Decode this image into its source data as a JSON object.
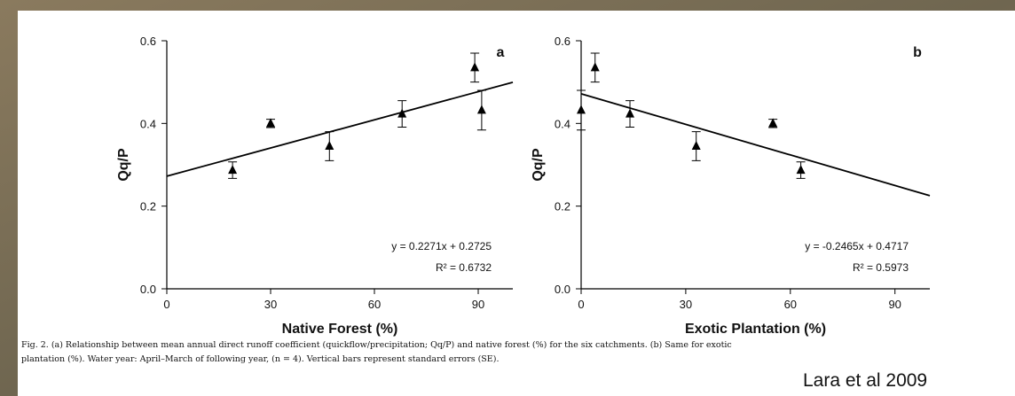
{
  "chart_data": [
    {
      "type": "scatter",
      "panel_label": "a",
      "x_label": "Native Forest (%)",
      "y_label": "Qq/P",
      "x": [
        19,
        30,
        47,
        68,
        89,
        91
      ],
      "values": [
        0.287,
        0.4,
        0.345,
        0.423,
        0.535,
        0.432
      ],
      "errors": [
        0.02,
        0.01,
        0.035,
        0.032,
        0.035,
        0.048
      ],
      "trend": {
        "slope": 0.002271,
        "intercept": 0.2725
      },
      "equation": "y = 0.2271x + 0.2725",
      "r_squared": "R² = 0.6732",
      "xlim": [
        0,
        100
      ],
      "ylim": [
        0,
        0.6
      ],
      "xticks": [
        0,
        30,
        60,
        90
      ],
      "yticks": [
        {
          "value": 0,
          "label": "0.0"
        },
        {
          "value": 0.2,
          "label": "0.2"
        },
        {
          "value": 0.4,
          "label": "0.4"
        },
        {
          "value": 0.6,
          "label": "0.6"
        }
      ],
      "color": "#000000"
    },
    {
      "type": "scatter",
      "panel_label": "b",
      "x_label": "Exotic Plantation (%)",
      "y_label": "Qq/P",
      "x": [
        0,
        4,
        14,
        33,
        55,
        63
      ],
      "values": [
        0.432,
        0.535,
        0.423,
        0.345,
        0.4,
        0.287
      ],
      "errors": [
        0.048,
        0.035,
        0.032,
        0.035,
        0.01,
        0.02
      ],
      "trend": {
        "slope": -0.002465,
        "intercept": 0.4717
      },
      "equation": "y = -0.2465x + 0.4717",
      "r_squared": "R² = 0.5973",
      "xlim": [
        0,
        100
      ],
      "ylim": [
        0,
        0.6
      ],
      "xticks": [
        0,
        30,
        60,
        90
      ],
      "yticks": [
        {
          "value": 0,
          "label": "0.0"
        },
        {
          "value": 0.2,
          "label": "0.2"
        },
        {
          "value": 0.4,
          "label": "0.4"
        },
        {
          "value": 0.6,
          "label": "0.6"
        }
      ],
      "color": "#000000"
    }
  ],
  "caption": [
    "Fig. 2. (a) Relationship between mean annual direct runoff coefficient (quickflow/precipitation; Qq/P) and native forest (%) for the six catchments. (b) Same for exotic",
    "plantation (%). Water year: April–March of following year, (n = 4). Vertical bars represent standard errors (SE)."
  ],
  "credit": "Lara et al 2009"
}
